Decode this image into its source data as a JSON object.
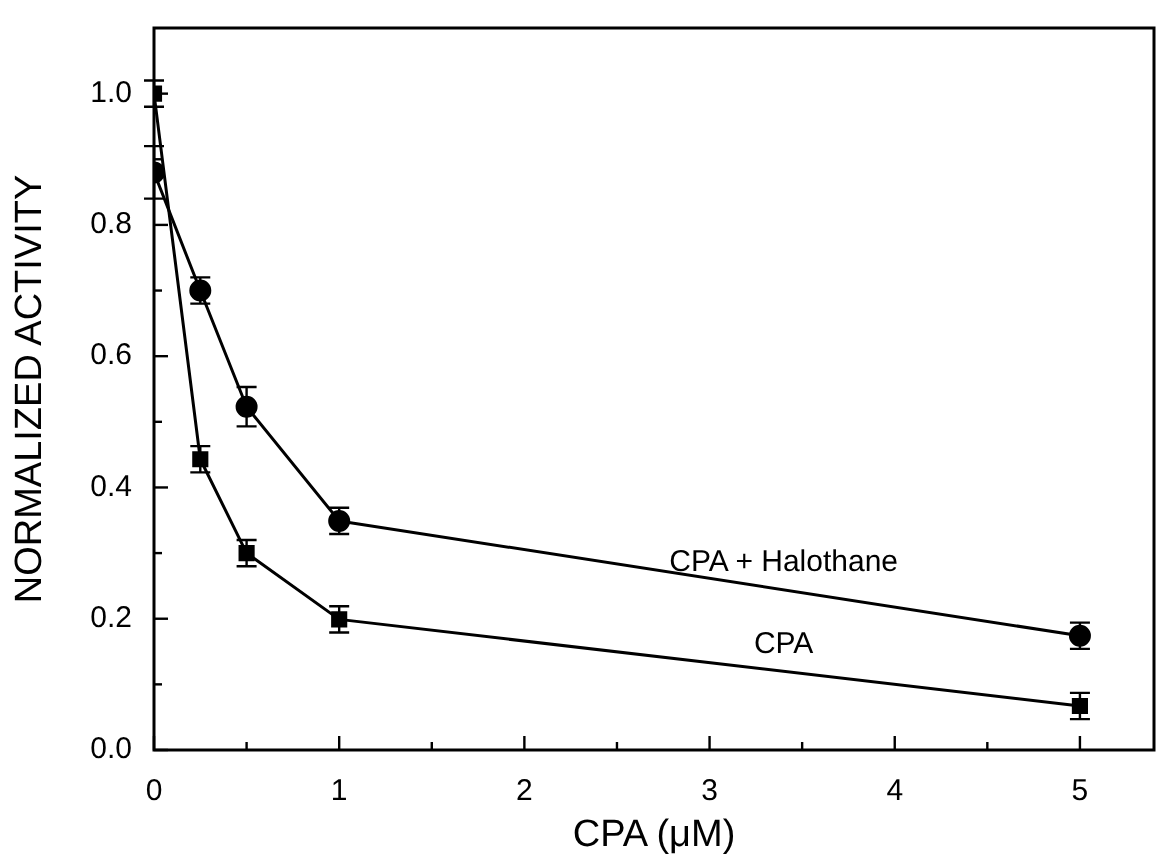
{
  "chart_data": {
    "type": "line",
    "xlabel": "CPA (μM)",
    "ylabel": "NORMALIZED ACTIVITY",
    "x": [
      0,
      0.25,
      0.5,
      1,
      5
    ],
    "series": [
      {
        "name": "CPA + Halothane",
        "color": "#000000",
        "marker": "circle",
        "values": [
          0.88,
          0.7,
          0.523,
          0.349,
          0.174
        ],
        "errors": [
          0.04,
          0.02,
          0.03,
          0.02,
          0.02
        ]
      },
      {
        "name": "CPA",
        "color": "#000000",
        "marker": "square",
        "values": [
          1.0,
          0.443,
          0.3,
          0.199,
          0.067
        ],
        "errors": [
          0.02,
          0.02,
          0.02,
          0.02,
          0.02
        ]
      }
    ],
    "xlim": [
      0,
      5.4
    ],
    "ylim": [
      0,
      1.1
    ],
    "xticks": [
      0,
      {
        "value": 0.5,
        "label": null
      },
      1,
      {
        "value": 1.5,
        "label": null
      },
      2,
      {
        "value": 2.5,
        "label": null
      },
      3,
      {
        "value": 3.5,
        "label": null
      },
      4,
      {
        "value": 4.5,
        "label": null
      },
      5
    ],
    "yticks": [
      {
        "value": 0,
        "label": "0.0"
      },
      {
        "value": 0.1,
        "label": null
      },
      {
        "value": 0.2,
        "label": "0.2"
      },
      {
        "value": 0.3,
        "label": null
      },
      {
        "value": 0.4,
        "label": "0.4"
      },
      {
        "value": 0.5,
        "label": null
      },
      {
        "value": 0.6,
        "label": "0.6"
      },
      {
        "value": 0.7,
        "label": null
      },
      {
        "value": 0.8,
        "label": "0.8"
      },
      {
        "value": 0.9,
        "label": null
      },
      {
        "value": 1.0,
        "label": "1.0"
      }
    ],
    "grid": false,
    "legend": false,
    "line_style": "solid"
  }
}
